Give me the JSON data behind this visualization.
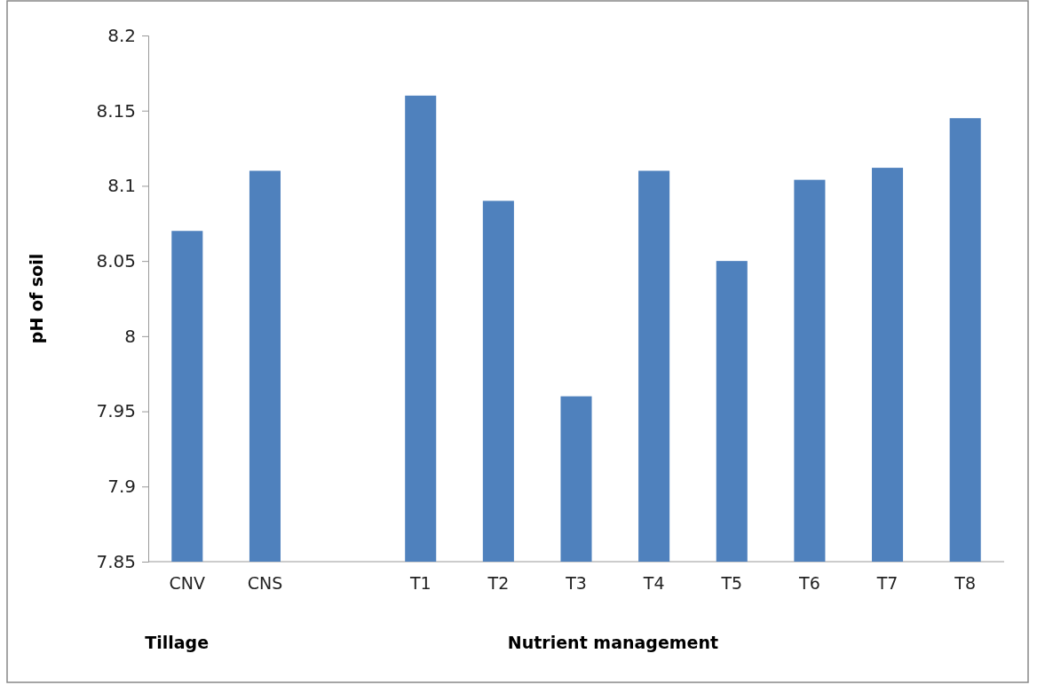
{
  "chart_data": {
    "type": "bar",
    "ylabel": "pH of soil",
    "categories": [
      "CNV",
      "CNS",
      null,
      "T1",
      "T2",
      "T3",
      "T4",
      "T5",
      "T6",
      "T7",
      "T8"
    ],
    "values": [
      8.07,
      8.11,
      null,
      8.16,
      8.09,
      7.96,
      8.11,
      8.05,
      8.104,
      8.112,
      8.145
    ],
    "color": "#4f81bd",
    "ylim": [
      7.85,
      8.2
    ],
    "yticks": [
      7.85,
      7.9,
      7.95,
      8,
      8.05,
      8.1,
      8.15,
      8.2
    ],
    "grid": false,
    "annotations": [
      "Tillage",
      "Nutrient management"
    ]
  }
}
